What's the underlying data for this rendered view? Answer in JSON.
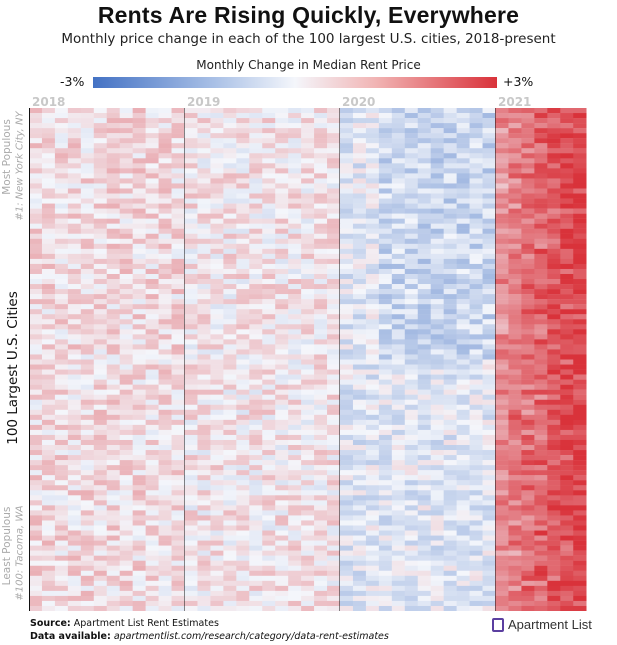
{
  "title": "Rents Are Rising Quickly, Everywhere",
  "subtitle": "Monthly price change in each of the 100 largest U.S. cities, 2018-present",
  "legend": {
    "title": "Monthly Change in Median Rent Price",
    "min_label": "-3%",
    "max_label": "+3%",
    "colors": {
      "negative": "#4472c4",
      "neutral": "#f4f6fb",
      "positive": "#d9323a"
    }
  },
  "years": [
    "2018",
    "2019",
    "2020",
    "2021"
  ],
  "y_axis": {
    "label": "100 Largest U.S. Cities",
    "top_label": "Most Populous",
    "top_sub": "#1: New York City, NY",
    "bottom_label": "Least Populous",
    "bottom_sub": "#100: Tacoma, WA"
  },
  "chart_data": {
    "type": "heatmap",
    "title": "Rents Are Rising Quickly, Everywhere",
    "x_label": "",
    "y_label": "100 Largest U.S. Cities",
    "n_rows": 100,
    "value_unit": "%",
    "value_range": [
      -3,
      3
    ],
    "periods": [
      {
        "year": "2018",
        "months": 12,
        "typical_change": 0.4
      },
      {
        "year": "2019",
        "months": 12,
        "typical_change": 0.25
      },
      {
        "year": "2020",
        "months": 12,
        "typical_change": -0.3
      },
      {
        "year": "2021",
        "months": 7,
        "typical_change": 1.9
      }
    ]
  },
  "footer": {
    "source_label": "Source:",
    "source_text": "Apartment List Rent Estimates",
    "data_label": "Data available:",
    "data_url": "apartmentlist.com/research/category/data-rent-estimates"
  },
  "logo_text": "Apartment List"
}
